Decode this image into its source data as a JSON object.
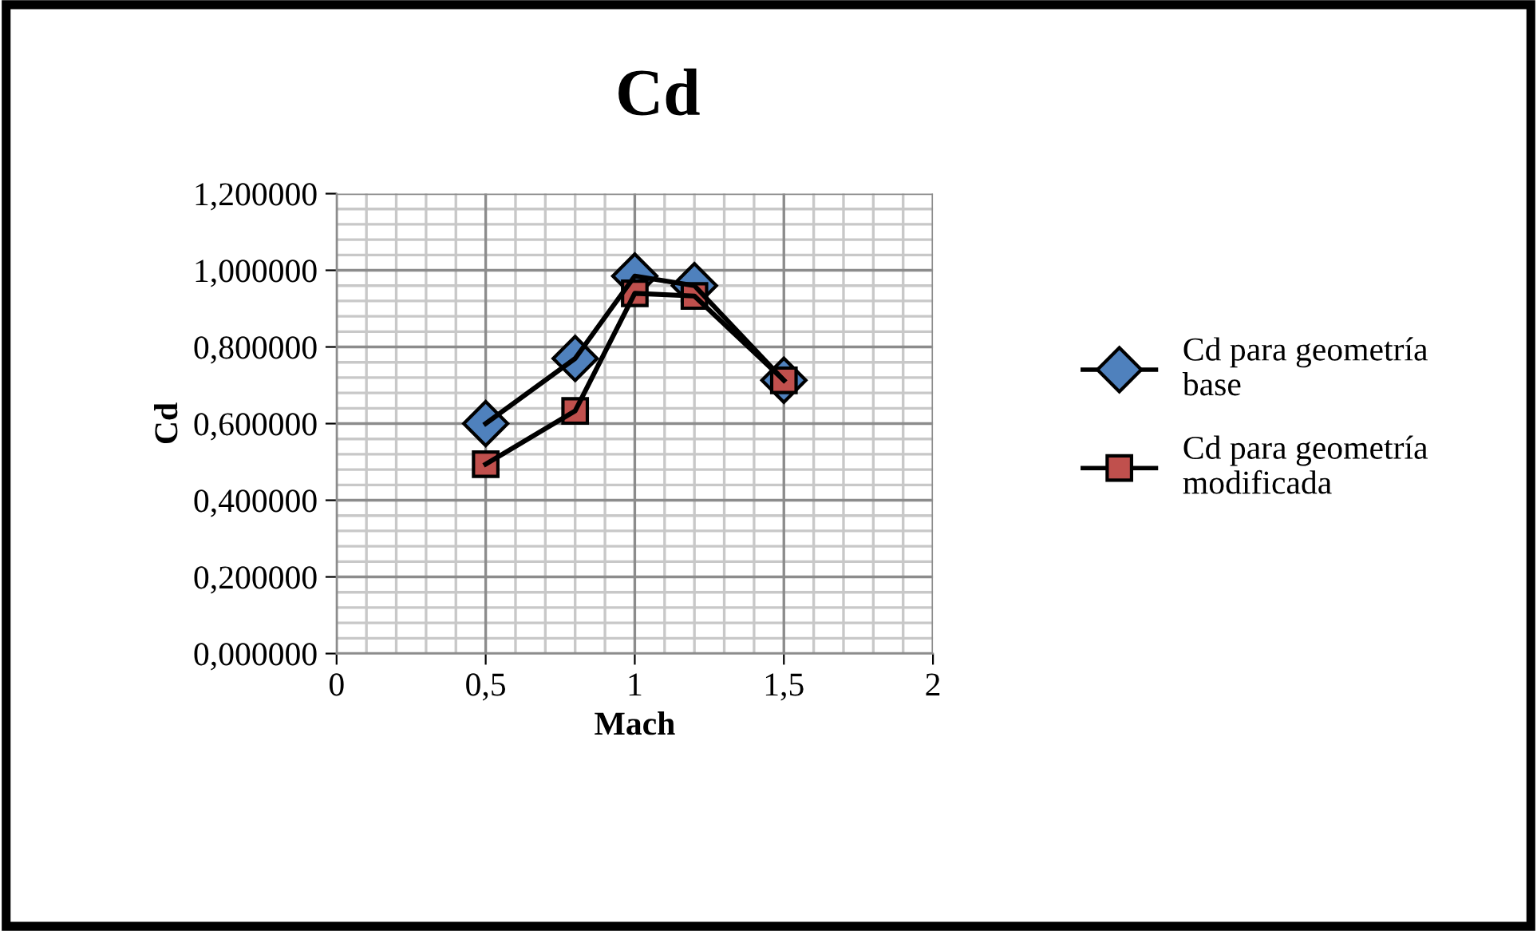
{
  "chart_data": {
    "type": "line",
    "title": "Cd",
    "xlabel": "Mach",
    "ylabel": "Cd",
    "x": [
      0.5,
      0.8,
      1.0,
      1.2,
      1.5
    ],
    "series": [
      {
        "name": "Cd para geometría base",
        "color": "#4f81bd",
        "marker": "diamond",
        "values": [
          0.6,
          0.77,
          0.985,
          0.96,
          0.713
        ]
      },
      {
        "name": "Cd para geometría modificada",
        "color": "#c0504d",
        "marker": "square",
        "values": [
          0.494,
          0.633,
          0.94,
          0.933,
          0.713
        ]
      }
    ],
    "xlim": [
      0,
      2
    ],
    "xticks": [
      0,
      {
        "value": 0.5,
        "label": "0,5"
      },
      1,
      {
        "value": 1.5,
        "label": "1,5"
      },
      2
    ],
    "ylim": [
      0,
      1.2
    ],
    "yticks": [
      {
        "value": 0,
        "label": "0,000000"
      },
      {
        "value": 0.2,
        "label": "0,200000"
      },
      {
        "value": 0.4,
        "label": "0,400000"
      },
      {
        "value": 0.6,
        "label": "0,600000"
      },
      {
        "value": 0.8,
        "label": "0,800000"
      },
      {
        "value": 1.0,
        "label": "1,000000"
      },
      {
        "value": 1.2,
        "label": "1,200000"
      }
    ],
    "grid": true,
    "legend": "right",
    "line_style": "solid"
  }
}
